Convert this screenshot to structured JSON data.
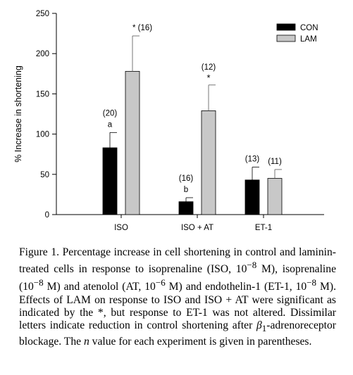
{
  "chart_data": {
    "type": "bar",
    "title": "",
    "xlabel": "",
    "ylabel": "% Increase in shortening",
    "ylim": [
      0,
      250
    ],
    "yticks": [
      0,
      50,
      100,
      150,
      200,
      250
    ],
    "categories": [
      "ISO",
      "ISO +  AT",
      "ET-1"
    ],
    "series": [
      {
        "name": "CON",
        "color": "#000000",
        "values": [
          83,
          16,
          43
        ],
        "errors": [
          19,
          5,
          16
        ],
        "labels": [
          "(20)",
          "(16)",
          "(13)"
        ],
        "letters": [
          "a",
          "b",
          ""
        ]
      },
      {
        "name": "LAM",
        "color": "#c8c8c8",
        "values": [
          178,
          129,
          45
        ],
        "errors": [
          44,
          32,
          11
        ],
        "labels": [
          "* (16)",
          "(12)",
          "(11)"
        ],
        "stars": [
          "",
          "*",
          ""
        ]
      }
    ],
    "legend_position": "top-right",
    "grid": false
  },
  "caption": {
    "part1": "Figure 1. Percentage increase in cell shortening in control and laminin-treated cells in response to isoprenaline (ISO, 10",
    "exp1": "−8",
    "part2": " M), isoprenaline (10",
    "exp2": "−8",
    "part3": " M) and atenolol (AT, 10",
    "exp3": "−6",
    "part4": " M) and endothelin-1 (ET-1, 10",
    "exp4": "−8",
    "part5": " M). Effects of LAM on response to ISO and ISO + AT were significant as indicated by the *, but response to ET-1 was not altered. Dissimilar letters indicate reduction in control shortening after ",
    "beta": "β",
    "sub1": "1",
    "part6": "-adrenoreceptor blockage. The ",
    "n": "n",
    "part7": " value for each experiment is given in parentheses."
  }
}
